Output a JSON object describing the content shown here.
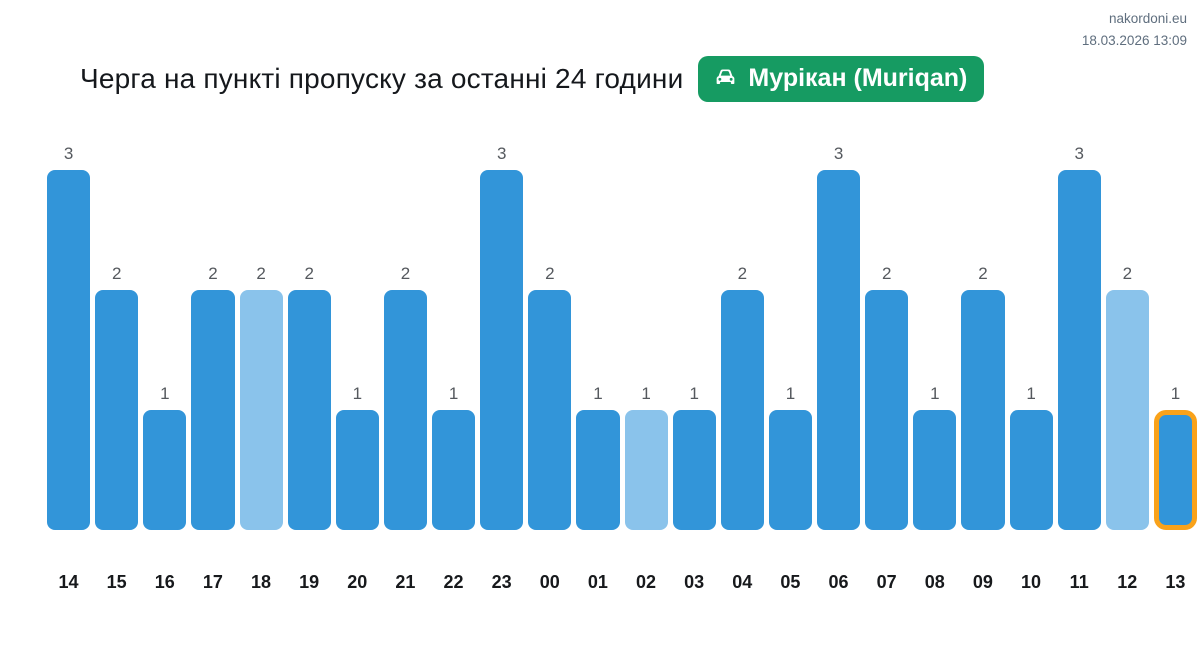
{
  "header": {
    "site": "nakordoni.eu",
    "timestamp": "18.03.2026 13:09"
  },
  "title": {
    "text": "Черга на пункті пропуску за останні 24 години",
    "badge": {
      "label": "Мурікан (Muriqan)",
      "icon": "car-front-icon",
      "color": "#169b62"
    }
  },
  "chart_data": {
    "type": "bar",
    "title": "Черга на пункті пропуску за останні 24 години",
    "xlabel": "",
    "ylabel": "",
    "ylim": [
      0,
      3
    ],
    "grid": false,
    "value_labels": true,
    "categories": [
      "14",
      "15",
      "16",
      "17",
      "18",
      "19",
      "20",
      "21",
      "22",
      "23",
      "00",
      "01",
      "02",
      "03",
      "04",
      "05",
      "06",
      "07",
      "08",
      "09",
      "10",
      "11",
      "12",
      "13"
    ],
    "values": [
      3,
      2,
      1,
      2,
      2,
      2,
      1,
      2,
      1,
      3,
      2,
      1,
      1,
      1,
      2,
      1,
      3,
      2,
      1,
      2,
      1,
      3,
      2,
      1
    ],
    "bar_styles": [
      "normal",
      "normal",
      "normal",
      "normal",
      "light",
      "normal",
      "normal",
      "normal",
      "normal",
      "normal",
      "normal",
      "normal",
      "light",
      "normal",
      "normal",
      "normal",
      "normal",
      "normal",
      "normal",
      "normal",
      "normal",
      "normal",
      "light",
      "current"
    ],
    "colors": {
      "normal": "#3295d9",
      "light": "#8ac3eb",
      "current_fill": "#3295d9",
      "current_border": "#f9a21a"
    }
  }
}
